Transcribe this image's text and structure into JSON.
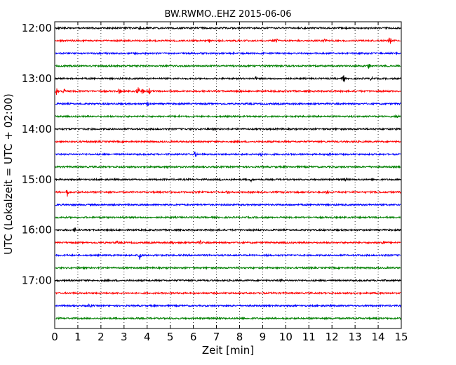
{
  "chart_data": {
    "type": "line",
    "title": "BW.RWMO..EHZ 2015-06-06",
    "xlabel": "Zeit  [min]",
    "ylabel": "UTC (Lokalzeit = UTC + 02:00)",
    "xlim": [
      0,
      15
    ],
    "x_ticks": [
      0,
      1,
      2,
      3,
      4,
      5,
      6,
      7,
      8,
      9,
      10,
      11,
      12,
      13,
      14,
      15
    ],
    "x_tick_labels": [
      "0",
      "1",
      "2",
      "3",
      "4",
      "5",
      "6",
      "7",
      "8",
      "9",
      "10",
      "11",
      "12",
      "13",
      "14",
      "15"
    ],
    "y_tick_labels": [
      "12:00",
      "13:00",
      "14:00",
      "15:00",
      "16:00",
      "17:00"
    ],
    "grid": "vertical dotted lines at each minute",
    "trace_colors": [
      "#000000",
      "#ff0000",
      "#0000ff",
      "#008000"
    ],
    "traces": [
      {
        "start": "12:00",
        "color": "#000000",
        "events": [
          [
            3.7,
            3
          ]
        ]
      },
      {
        "start": "12:15",
        "color": "#ff0000",
        "events": [
          [
            6.7,
            2
          ],
          [
            9.6,
            2
          ],
          [
            11.7,
            2
          ],
          [
            14.5,
            6
          ]
        ]
      },
      {
        "start": "12:30",
        "color": "#0000ff",
        "events": []
      },
      {
        "start": "12:45",
        "color": "#008000",
        "events": [
          [
            13.6,
            3
          ]
        ]
      },
      {
        "start": "13:00",
        "color": "#000000",
        "events": [
          [
            8.7,
            2
          ],
          [
            12.5,
            6
          ],
          [
            13.7,
            2
          ]
        ]
      },
      {
        "start": "13:15",
        "color": "#ff0000",
        "events": [
          [
            0.1,
            6
          ],
          [
            0.4,
            3
          ],
          [
            2.8,
            3
          ],
          [
            3.6,
            6
          ],
          [
            3.8,
            4
          ],
          [
            4.1,
            4
          ]
        ]
      },
      {
        "start": "13:30",
        "color": "#0000ff",
        "events": [
          [
            4.0,
            3
          ]
        ]
      },
      {
        "start": "13:45",
        "color": "#008000",
        "events": [
          [
            5.4,
            2
          ],
          [
            14.8,
            3
          ]
        ]
      },
      {
        "start": "14:00",
        "color": "#000000",
        "events": []
      },
      {
        "start": "14:15",
        "color": "#ff0000",
        "events": [
          [
            5.9,
            2
          ]
        ]
      },
      {
        "start": "14:30",
        "color": "#0000ff",
        "events": [
          [
            6.1,
            4
          ],
          [
            8.9,
            5
          ],
          [
            11.9,
            3
          ]
        ]
      },
      {
        "start": "14:45",
        "color": "#008000",
        "events": [
          [
            4.9,
            2
          ]
        ]
      },
      {
        "start": "15:00",
        "color": "#000000",
        "events": [
          [
            7.2,
            2
          ],
          [
            8.5,
            2
          ],
          [
            12.6,
            2
          ]
        ]
      },
      {
        "start": "15:15",
        "color": "#ff0000",
        "events": [
          [
            0.55,
            6
          ],
          [
            7.5,
            2
          ],
          [
            11.8,
            2
          ]
        ]
      },
      {
        "start": "15:30",
        "color": "#0000ff",
        "events": []
      },
      {
        "start": "15:45",
        "color": "#008000",
        "events": [
          [
            3.0,
            2
          ]
        ]
      },
      {
        "start": "16:00",
        "color": "#000000",
        "events": [
          [
            0.9,
            3
          ]
        ]
      },
      {
        "start": "16:15",
        "color": "#ff0000",
        "events": [
          [
            2.7,
            2
          ],
          [
            5.1,
            2
          ],
          [
            6.3,
            2
          ],
          [
            14.2,
            4
          ]
        ]
      },
      {
        "start": "16:30",
        "color": "#0000ff",
        "events": [
          [
            3.7,
            9
          ],
          [
            9.2,
            2
          ]
        ]
      },
      {
        "start": "16:45",
        "color": "#008000",
        "events": []
      },
      {
        "start": "17:00",
        "color": "#000000",
        "events": [
          [
            9.8,
            2
          ]
        ]
      },
      {
        "start": "17:15",
        "color": "#ff0000",
        "events": []
      },
      {
        "start": "17:30",
        "color": "#0000ff",
        "events": [
          [
            1.5,
            2
          ]
        ]
      },
      {
        "start": "17:45",
        "color": "#008000",
        "events": []
      }
    ]
  }
}
